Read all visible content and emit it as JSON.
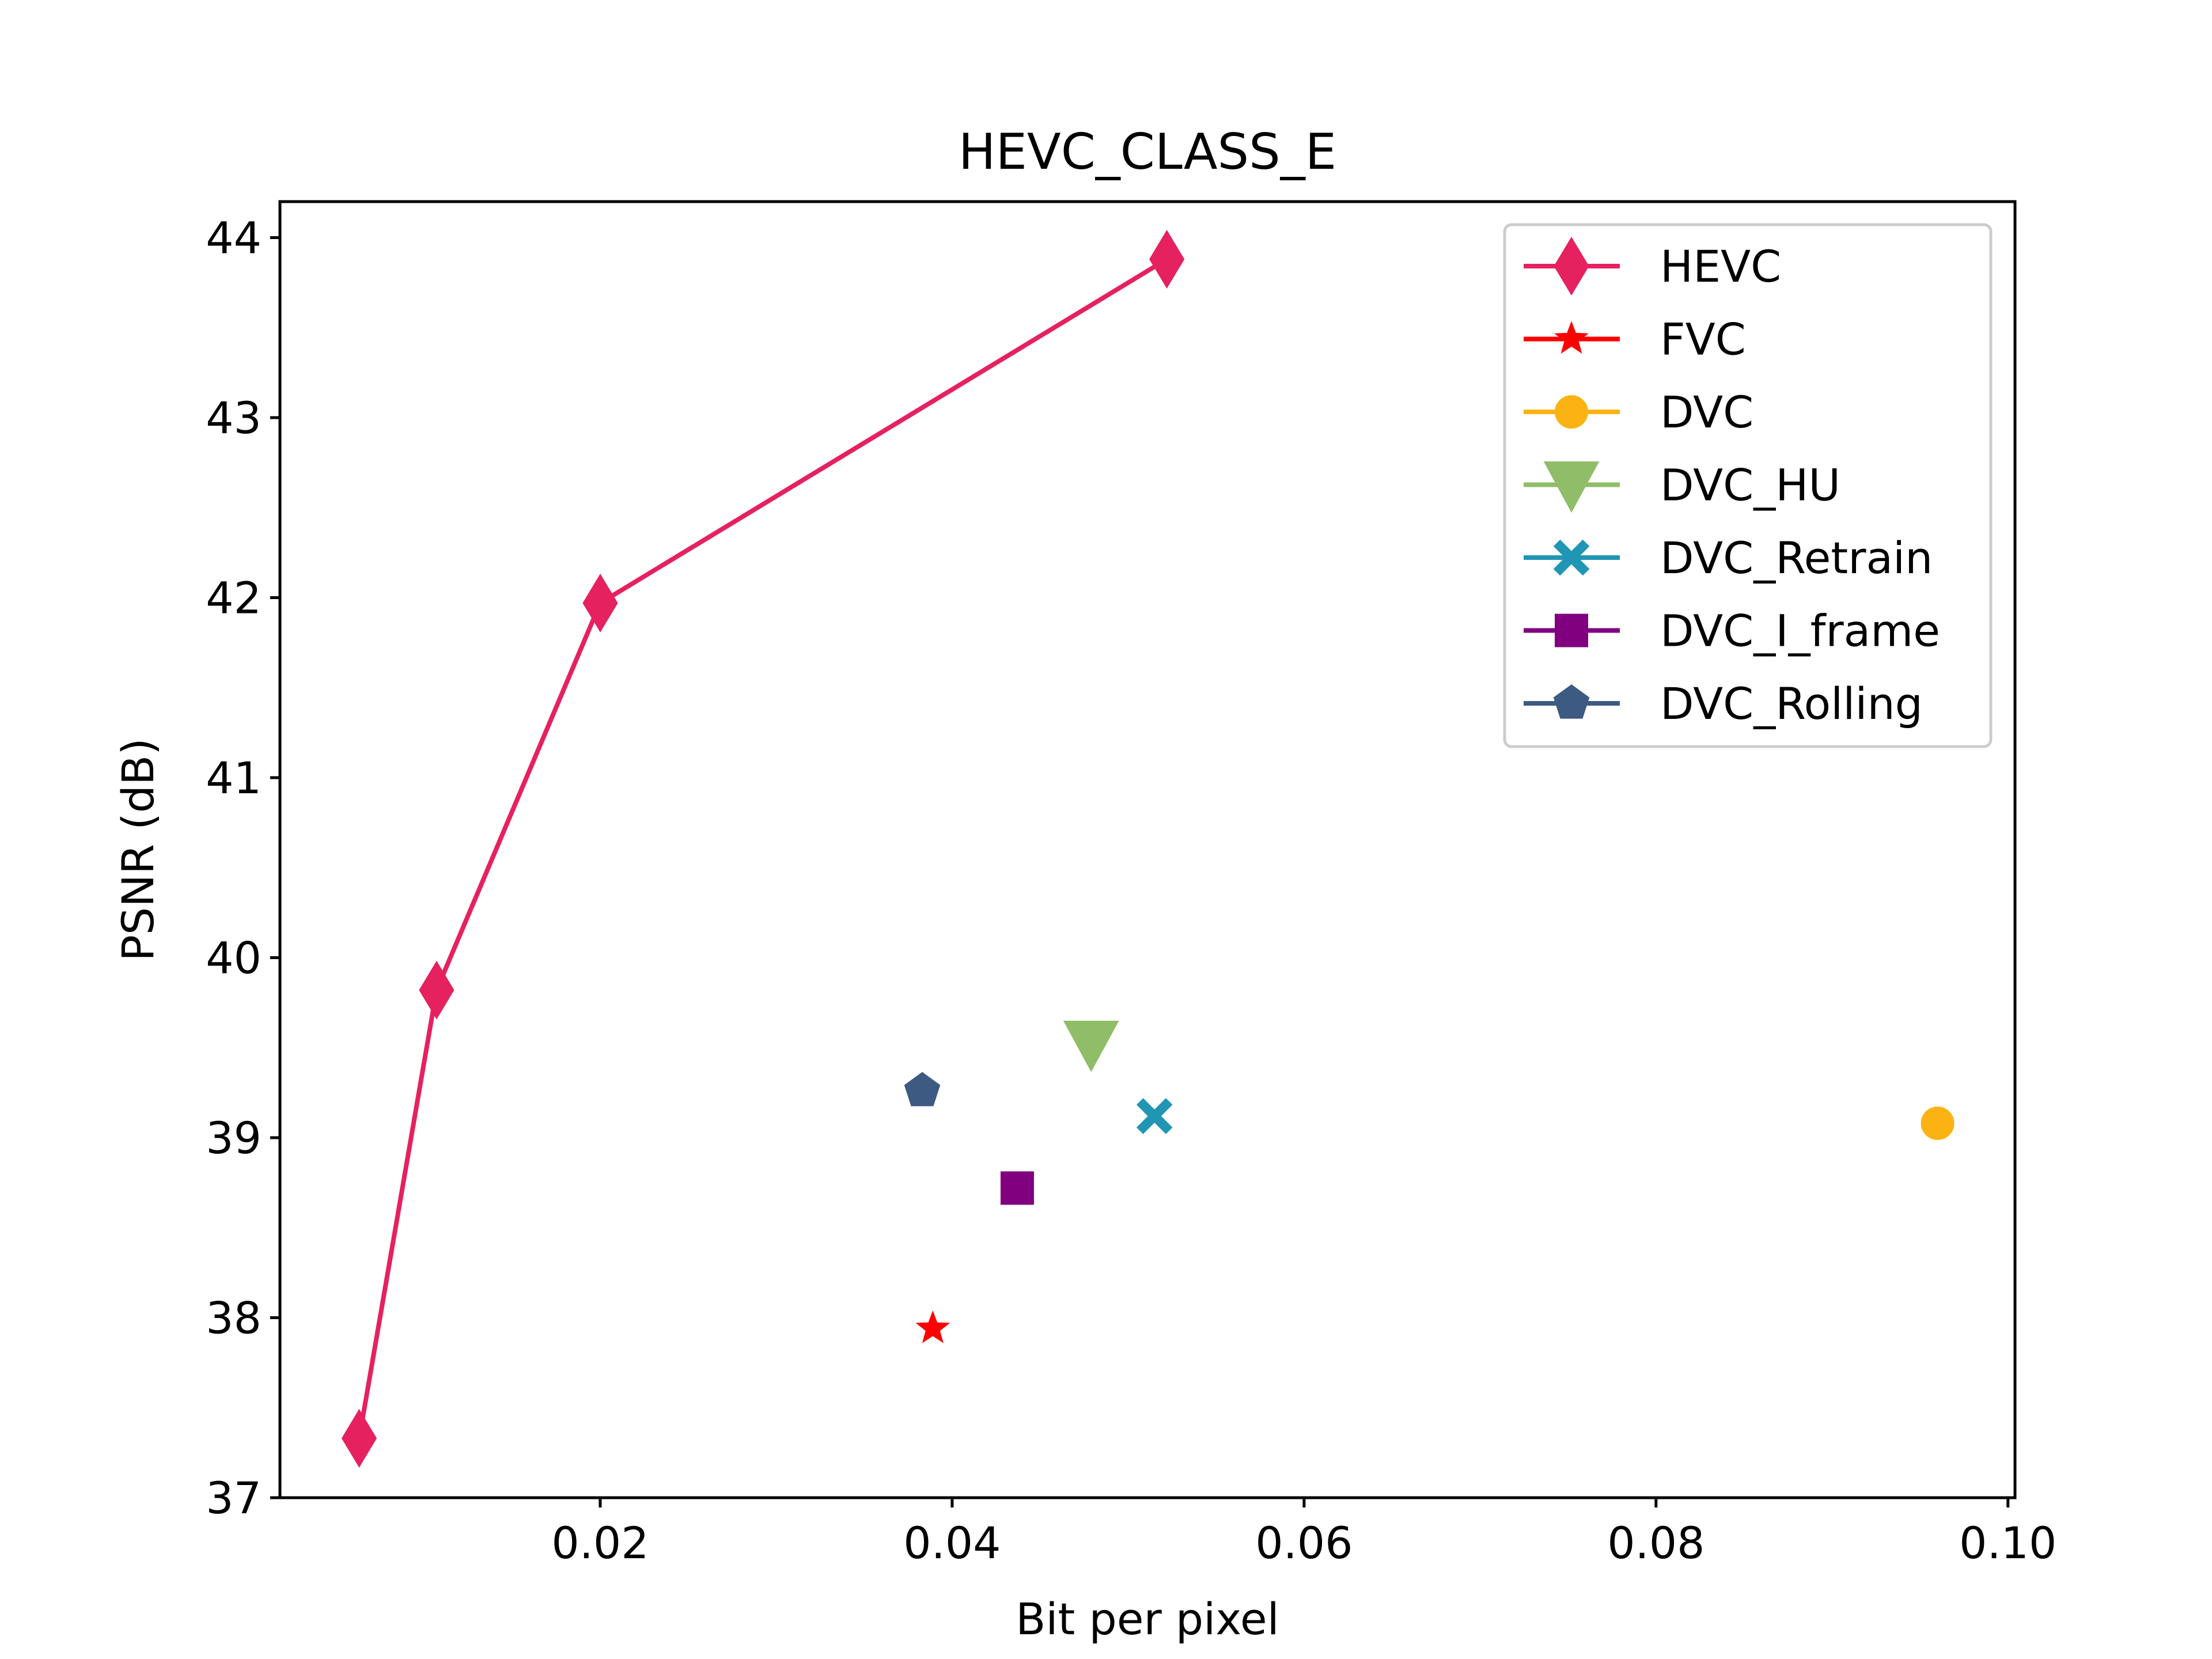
{
  "chart_data": {
    "type": "line",
    "title": "HEVC_CLASS_E",
    "xlabel": "Bit per pixel",
    "ylabel": "PSNR (dB)",
    "xlim": [
      0.0018,
      0.1004
    ],
    "ylim": [
      37,
      44.2
    ],
    "xticks": [
      0.02,
      0.04,
      0.06,
      0.08,
      0.1
    ],
    "xtick_labels": [
      "0.02",
      "0.04",
      "0.06",
      "0.08",
      "0.10"
    ],
    "yticks": [
      37,
      38,
      39,
      40,
      41,
      42,
      43,
      44
    ],
    "ytick_labels": [
      "37",
      "38",
      "39",
      "40",
      "41",
      "42",
      "43",
      "44"
    ],
    "grid": false,
    "legend_position": "top-right",
    "series": [
      {
        "name": "HEVC",
        "color": "#e6215f",
        "marker": "diamond",
        "line": true,
        "points": [
          [
            0.0063,
            37.33
          ],
          [
            0.0107,
            39.82
          ],
          [
            0.02,
            41.97
          ],
          [
            0.0522,
            43.88
          ]
        ]
      },
      {
        "name": "FVC",
        "color": "#ff0000",
        "marker": "star",
        "line": false,
        "points": [
          [
            0.0389,
            37.94
          ]
        ]
      },
      {
        "name": "DVC",
        "color": "#fbb314",
        "marker": "circle",
        "line": false,
        "points": [
          [
            0.096,
            39.08
          ]
        ]
      },
      {
        "name": "DVC_HU",
        "color": "#8fbd68",
        "marker": "triangle-down",
        "line": false,
        "points": [
          [
            0.0479,
            39.52
          ]
        ]
      },
      {
        "name": "DVC_Retrain",
        "color": "#2196b4",
        "marker": "x-filled",
        "line": false,
        "points": [
          [
            0.0515,
            39.12
          ]
        ]
      },
      {
        "name": "DVC_I_frame",
        "color": "#800080",
        "marker": "square",
        "line": false,
        "points": [
          [
            0.0437,
            38.72
          ]
        ]
      },
      {
        "name": "DVC_Rolling",
        "color": "#3c5a82",
        "marker": "pentagon",
        "line": false,
        "points": [
          [
            0.0383,
            39.26
          ]
        ]
      }
    ]
  }
}
